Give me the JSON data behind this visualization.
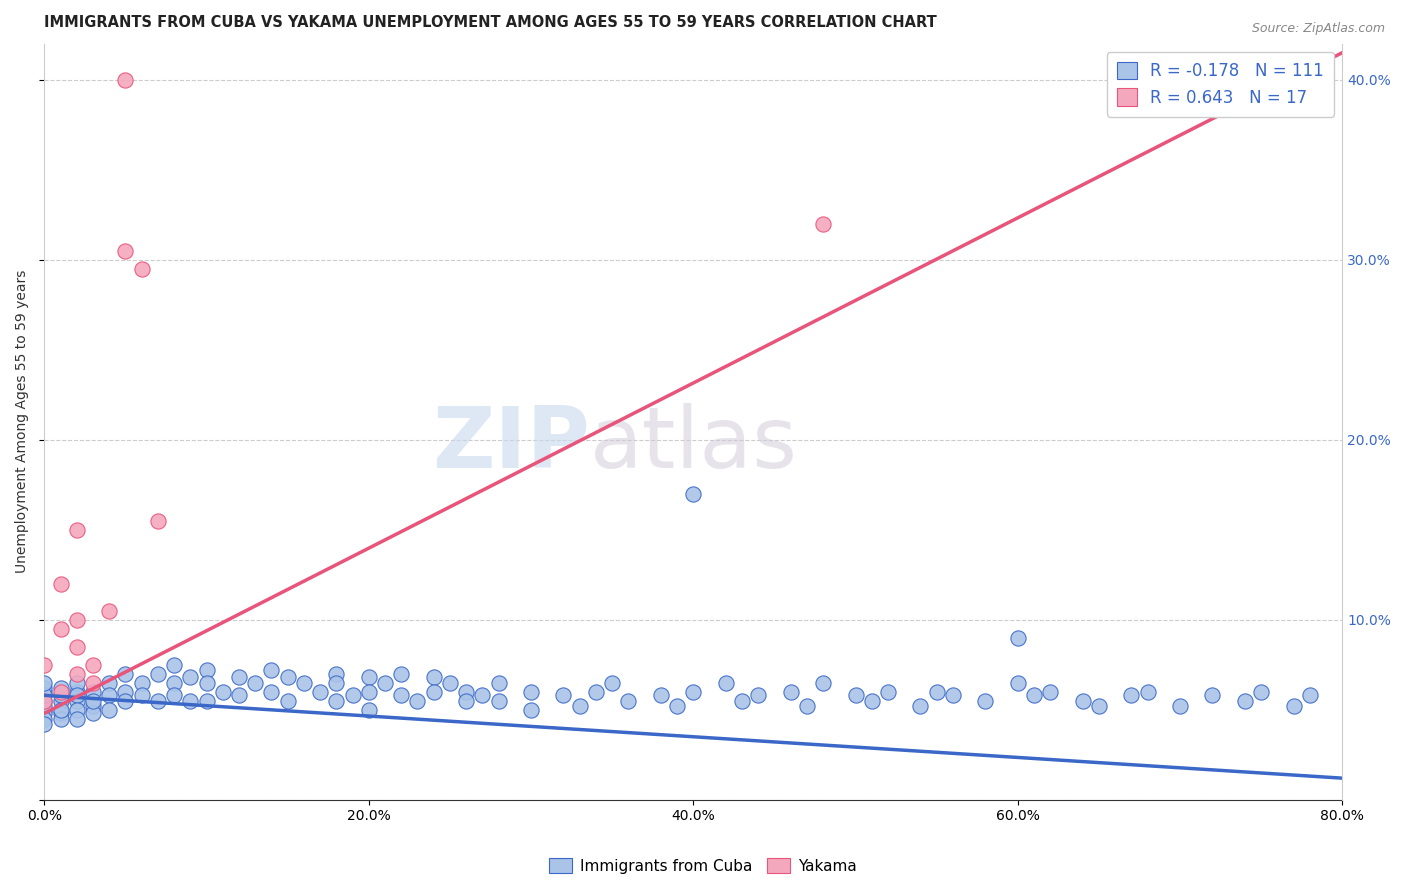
{
  "title": "IMMIGRANTS FROM CUBA VS YAKAMA UNEMPLOYMENT AMONG AGES 55 TO 59 YEARS CORRELATION CHART",
  "source_text": "Source: ZipAtlas.com",
  "ylabel": "Unemployment Among Ages 55 to 59 years",
  "xlim": [
    0.0,
    0.8
  ],
  "ylim": [
    0.0,
    0.42
  ],
  "x_ticks": [
    0.0,
    0.2,
    0.4,
    0.6,
    0.8
  ],
  "x_tick_labels": [
    "0.0%",
    "20.0%",
    "40.0%",
    "60.0%",
    "80.0%"
  ],
  "y_ticks": [
    0.0,
    0.1,
    0.2,
    0.3,
    0.4
  ],
  "y_tick_labels": [
    "",
    "",
    "",
    "",
    ""
  ],
  "right_y_ticks": [
    0.1,
    0.2,
    0.3,
    0.4
  ],
  "right_y_tick_labels": [
    "10.0%",
    "20.0%",
    "30.0%",
    "40.0%"
  ],
  "blue_scatter_x": [
    0.0,
    0.0,
    0.0,
    0.0,
    0.0,
    0.0,
    0.0,
    0.0,
    0.0,
    0.0,
    0.01,
    0.01,
    0.01,
    0.01,
    0.01,
    0.01,
    0.02,
    0.02,
    0.02,
    0.02,
    0.02,
    0.02,
    0.03,
    0.03,
    0.03,
    0.03,
    0.04,
    0.04,
    0.04,
    0.05,
    0.05,
    0.05,
    0.06,
    0.06,
    0.07,
    0.07,
    0.08,
    0.08,
    0.08,
    0.09,
    0.09,
    0.1,
    0.1,
    0.1,
    0.11,
    0.12,
    0.12,
    0.13,
    0.14,
    0.14,
    0.15,
    0.15,
    0.16,
    0.17,
    0.18,
    0.18,
    0.18,
    0.19,
    0.2,
    0.2,
    0.2,
    0.21,
    0.22,
    0.22,
    0.23,
    0.24,
    0.24,
    0.25,
    0.26,
    0.26,
    0.27,
    0.28,
    0.28,
    0.3,
    0.3,
    0.32,
    0.33,
    0.34,
    0.35,
    0.36,
    0.38,
    0.39,
    0.4,
    0.42,
    0.43,
    0.44,
    0.46,
    0.47,
    0.48,
    0.5,
    0.51,
    0.52,
    0.54,
    0.55,
    0.56,
    0.58,
    0.6,
    0.61,
    0.62,
    0.64,
    0.65,
    0.67,
    0.68,
    0.7,
    0.72,
    0.74,
    0.75,
    0.77,
    0.78,
    0.4,
    0.6
  ],
  "blue_scatter_y": [
    0.05,
    0.055,
    0.06,
    0.062,
    0.048,
    0.052,
    0.058,
    0.045,
    0.042,
    0.065,
    0.055,
    0.058,
    0.062,
    0.048,
    0.045,
    0.05,
    0.06,
    0.055,
    0.065,
    0.058,
    0.05,
    0.045,
    0.052,
    0.06,
    0.048,
    0.055,
    0.065,
    0.058,
    0.05,
    0.07,
    0.06,
    0.055,
    0.065,
    0.058,
    0.07,
    0.055,
    0.075,
    0.065,
    0.058,
    0.068,
    0.055,
    0.072,
    0.065,
    0.055,
    0.06,
    0.068,
    0.058,
    0.065,
    0.072,
    0.06,
    0.068,
    0.055,
    0.065,
    0.06,
    0.07,
    0.065,
    0.055,
    0.058,
    0.068,
    0.06,
    0.05,
    0.065,
    0.07,
    0.058,
    0.055,
    0.068,
    0.06,
    0.065,
    0.06,
    0.055,
    0.058,
    0.065,
    0.055,
    0.06,
    0.05,
    0.058,
    0.052,
    0.06,
    0.065,
    0.055,
    0.058,
    0.052,
    0.06,
    0.065,
    0.055,
    0.058,
    0.06,
    0.052,
    0.065,
    0.058,
    0.055,
    0.06,
    0.052,
    0.06,
    0.058,
    0.055,
    0.065,
    0.058,
    0.06,
    0.055,
    0.052,
    0.058,
    0.06,
    0.052,
    0.058,
    0.055,
    0.06,
    0.052,
    0.058,
    0.17,
    0.09
  ],
  "pink_scatter_x": [
    0.0,
    0.0,
    0.01,
    0.01,
    0.01,
    0.02,
    0.02,
    0.02,
    0.02,
    0.03,
    0.03,
    0.04,
    0.05,
    0.05,
    0.06,
    0.07,
    0.48
  ],
  "pink_scatter_y": [
    0.075,
    0.055,
    0.12,
    0.095,
    0.06,
    0.1,
    0.085,
    0.15,
    0.07,
    0.065,
    0.075,
    0.105,
    0.305,
    0.4,
    0.295,
    0.155,
    0.32
  ],
  "blue_line_x": [
    0.0,
    0.8
  ],
  "blue_line_y": [
    0.058,
    0.012
  ],
  "pink_line_x": [
    0.0,
    0.8
  ],
  "pink_line_y": [
    0.048,
    0.415
  ],
  "blue_color": "#aac4e8",
  "blue_line_color": "#3b68c8",
  "pink_color": "#f4a8be",
  "pink_line_color": "#e8547a",
  "legend_blue_r": "-0.178",
  "legend_blue_n": "111",
  "legend_pink_r": "0.643",
  "legend_pink_n": "17",
  "watermark_zip": "ZIP",
  "watermark_atlas": "atlas",
  "background_color": "#ffffff",
  "grid_color": "#cccccc",
  "title_fontsize": 10.5,
  "axis_label_fontsize": 10,
  "tick_fontsize": 10,
  "legend_fontsize": 12,
  "marker_size": 120
}
